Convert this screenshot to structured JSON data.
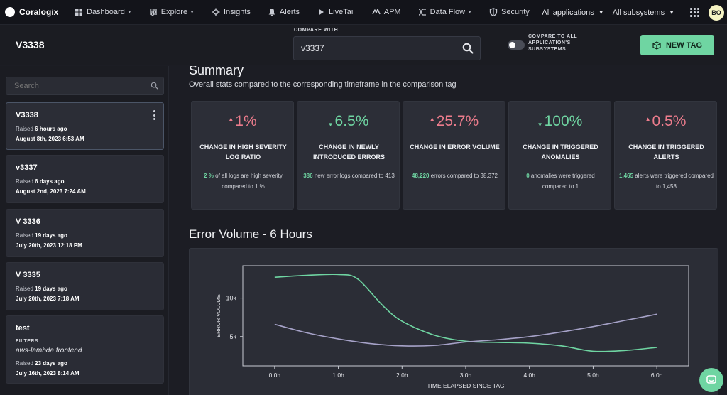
{
  "topnav": {
    "brand": "Coralogix",
    "items": [
      {
        "label": "Dashboard",
        "icon": "dashboard-icon",
        "dropdown": true
      },
      {
        "label": "Explore",
        "icon": "explore-icon",
        "dropdown": true
      },
      {
        "label": "Insights",
        "icon": "insights-icon",
        "dropdown": false
      },
      {
        "label": "Alerts",
        "icon": "bell-icon",
        "dropdown": false
      },
      {
        "label": "LiveTail",
        "icon": "play-icon",
        "dropdown": false
      },
      {
        "label": "APM",
        "icon": "apm-icon",
        "dropdown": false
      },
      {
        "label": "Data Flow",
        "icon": "data-flow-icon",
        "dropdown": true
      },
      {
        "label": "Security",
        "icon": "shield-icon",
        "dropdown": false
      }
    ],
    "app_selector": "All applications",
    "subsystem_selector": "All subsystems",
    "avatar_initials": "BO"
  },
  "header": {
    "tag_title": "V3338",
    "compare_label": "COMPARE WITH",
    "compare_value": "v3337",
    "toggle_label": "COMPARE TO ALL APPLICATION'S SUBSYSTEMS",
    "new_tag_label": "NEW TAG"
  },
  "sidebar": {
    "search_placeholder": "Search",
    "tags": [
      {
        "name": "V3338",
        "raised_prefix": "Raised",
        "raised_ago": "6 hours ago",
        "date": "August 8th, 2023 6:53 AM",
        "active": true
      },
      {
        "name": "v3337",
        "raised_prefix": "Raised",
        "raised_ago": "6 days ago",
        "date": "August 2nd, 2023 7:24 AM",
        "active": false
      },
      {
        "name": "V 3336",
        "raised_prefix": "Raised",
        "raised_ago": "19 days ago",
        "date": "July 20th, 2023 12:18 PM",
        "active": false
      },
      {
        "name": "V 3335",
        "raised_prefix": "Raised",
        "raised_ago": "19 days ago",
        "date": "July 20th, 2023 7:18 AM",
        "active": false
      },
      {
        "name": "test",
        "filters_label": "FILTERS",
        "filters_value": "aws-lambda frontend",
        "raised_prefix": "Raised",
        "raised_ago": "23 days ago",
        "date": "July 16th, 2023 8:14 AM",
        "active": false
      }
    ]
  },
  "summary": {
    "title": "Summary",
    "subtitle": "Overall stats compared to the corresponding timeframe in the comparison tag",
    "stats": [
      {
        "value": "1%",
        "direction": "up",
        "label": "CHANGE IN HIGH SEVERITY LOG RATIO",
        "highlight": "2 %",
        "desc": " of all logs are high severity compared to 1 %"
      },
      {
        "value": "6.5%",
        "direction": "down",
        "label": "CHANGE IN NEWLY INTRODUCED ERRORS",
        "highlight": "386",
        "desc": " new error logs compared to 413"
      },
      {
        "value": "25.7%",
        "direction": "up",
        "label": "CHANGE IN ERROR VOLUME",
        "highlight": "48,220",
        "desc": " errors compared to 38,372"
      },
      {
        "value": "100%",
        "direction": "down",
        "label": "CHANGE IN TRIGGERED ANOMALIES",
        "highlight": "0",
        "desc": " anomalies were triggered compared to 1"
      },
      {
        "value": "0.5%",
        "direction": "up",
        "label": "CHANGE IN TRIGGERED ALERTS",
        "highlight": "1,465",
        "desc": " alerts were triggered compared to 1,458"
      }
    ]
  },
  "colors": {
    "accent_green": "#6fd5a2",
    "negative_red": "#ec7c8c",
    "comparison_purple": "#a6a2c8"
  },
  "chart_title": "Error Volume - 6 Hours",
  "chart_data": {
    "type": "line",
    "xlabel": "TIME ELAPSED SINCE TAG",
    "ylabel": "ERROR VOLUME",
    "x_ticks": [
      "0.0h",
      "1.0h",
      "2.0h",
      "3.0h",
      "4.0h",
      "5.0h",
      "6.0h"
    ],
    "y_ticks": [
      5000,
      10000
    ],
    "y_tick_labels": [
      "5k",
      "10k"
    ],
    "xlim": [
      -0.5,
      6.5
    ],
    "ylim": [
      1200,
      14200
    ],
    "series": [
      {
        "color": "#6fd5a2",
        "x": [
          0,
          0.5,
          1.0,
          1.3,
          1.7,
          2.0,
          2.5,
          3.0,
          3.5,
          4.0,
          4.5,
          5.0,
          5.5,
          6.0
        ],
        "y": [
          12700,
          12950,
          13050,
          12500,
          9000,
          7000,
          5200,
          4400,
          4250,
          4150,
          3800,
          3100,
          3200,
          3600
        ]
      },
      {
        "color": "#a6a2c8",
        "x": [
          0,
          0.5,
          1.0,
          1.5,
          2.0,
          2.5,
          3.0,
          3.5,
          4.0,
          4.5,
          5.0,
          5.5,
          6.0
        ],
        "y": [
          6600,
          5500,
          4700,
          4100,
          3800,
          3850,
          4300,
          4600,
          5000,
          5600,
          6300,
          7100,
          7900
        ]
      }
    ]
  }
}
